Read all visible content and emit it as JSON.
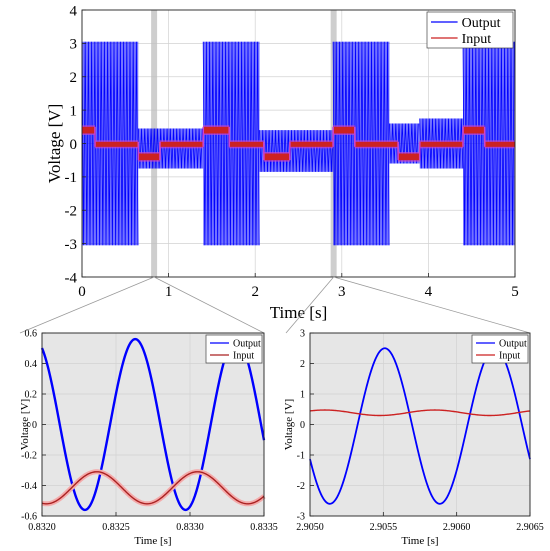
{
  "chart_data": [
    {
      "id": "main",
      "type": "line",
      "xlabel": "Time  [s]",
      "ylabel": "Voltage [V]",
      "xlim": [
        0,
        5
      ],
      "ylim": [
        -4,
        4
      ],
      "xticks": [
        0,
        1,
        2,
        3,
        4,
        5
      ],
      "yticks": [
        -4,
        -3,
        -2,
        -1,
        0,
        1,
        2,
        3,
        4
      ],
      "grid": true,
      "legend_position": "top-right",
      "series": [
        {
          "name": "Output",
          "color": "#0000ff",
          "style": "dense-oscillation-envelope",
          "segments": [
            {
              "x": [
                0.0,
                0.65
              ],
              "amp_top": 3.05,
              "amp_bot": -3.05
            },
            {
              "x": [
                0.65,
                1.4
              ],
              "amp_top": 0.45,
              "amp_bot": -0.75
            },
            {
              "x": [
                1.4,
                2.05
              ],
              "amp_top": 3.05,
              "amp_bot": -3.05
            },
            {
              "x": [
                2.05,
                2.9
              ],
              "amp_top": 0.4,
              "amp_bot": -0.85
            },
            {
              "x": [
                2.9,
                3.55
              ],
              "amp_top": 3.05,
              "amp_bot": -3.05
            },
            {
              "x": [
                3.55,
                3.9
              ],
              "amp_top": 0.6,
              "amp_bot": -0.6
            },
            {
              "x": [
                3.9,
                4.4
              ],
              "amp_top": 0.75,
              "amp_bot": -0.75
            },
            {
              "x": [
                4.4,
                5.0
              ],
              "amp_top": 3.05,
              "amp_bot": -3.05
            }
          ]
        },
        {
          "name": "Input",
          "color": "#cc2222",
          "style": "dense-oscillation-envelope",
          "segments": [
            {
              "x": [
                0.0,
                0.15
              ],
              "amp_top": 0.5,
              "amp_bot": 0.3
            },
            {
              "x": [
                0.15,
                0.65
              ],
              "amp_top": 0.05,
              "amp_bot": -0.1
            },
            {
              "x": [
                0.65,
                0.9
              ],
              "amp_top": -0.3,
              "amp_bot": -0.5
            },
            {
              "x": [
                0.9,
                1.4
              ],
              "amp_top": 0.05,
              "amp_bot": -0.1
            },
            {
              "x": [
                1.4,
                1.7
              ],
              "amp_top": 0.5,
              "amp_bot": 0.3
            },
            {
              "x": [
                1.7,
                2.1
              ],
              "amp_top": 0.05,
              "amp_bot": -0.1
            },
            {
              "x": [
                2.1,
                2.4
              ],
              "amp_top": -0.3,
              "amp_bot": -0.5
            },
            {
              "x": [
                2.4,
                2.9
              ],
              "amp_top": 0.05,
              "amp_bot": -0.1
            },
            {
              "x": [
                2.9,
                3.15
              ],
              "amp_top": 0.5,
              "amp_bot": 0.3
            },
            {
              "x": [
                3.15,
                3.65
              ],
              "amp_top": 0.05,
              "amp_bot": -0.1
            },
            {
              "x": [
                3.65,
                3.9
              ],
              "amp_top": -0.3,
              "amp_bot": -0.5
            },
            {
              "x": [
                3.9,
                4.4
              ],
              "amp_top": 0.05,
              "amp_bot": -0.1
            },
            {
              "x": [
                4.4,
                4.65
              ],
              "amp_top": 0.5,
              "amp_bot": 0.3
            },
            {
              "x": [
                4.65,
                5.0
              ],
              "amp_top": 0.05,
              "amp_bot": -0.1
            }
          ]
        }
      ],
      "zoom_regions": [
        {
          "x": [
            0.832,
            0.8335
          ]
        },
        {
          "x": [
            2.905,
            2.9065
          ]
        }
      ]
    },
    {
      "id": "zoom_left",
      "type": "line",
      "xlabel": "Time [s]",
      "ylabel": "Voltage [V]",
      "xlim": [
        0.832,
        0.8335
      ],
      "ylim": [
        -0.6,
        0.6
      ],
      "xticks": [
        0.832,
        0.8325,
        0.833,
        0.8335
      ],
      "xtick_labels": [
        "0.8320",
        "0.8325",
        "0.8330",
        "0.8335"
      ],
      "yticks": [
        -0.6,
        -0.4,
        -0.2,
        0,
        0.2,
        0.4,
        0.6
      ],
      "ytick_labels": [
        "-0.6",
        "-0.4",
        "-0.2",
        "0",
        "0.2",
        "0.4",
        "0.6"
      ],
      "background": "#e6e6e6",
      "grid": true,
      "legend_position": "top-right",
      "series": [
        {
          "name": "Output",
          "color": "#0000ff",
          "kind": "sine",
          "amp": 0.56,
          "offset": 0.0,
          "period": 0.00068,
          "peak_at": 0.83263
        },
        {
          "name": "Input",
          "color": "#aa2222",
          "kind": "sine",
          "amp": 0.105,
          "offset": -0.415,
          "period": 0.00068,
          "peak_at": 0.83237
        }
      ]
    },
    {
      "id": "zoom_right",
      "type": "line",
      "xlabel": "Time [s]",
      "ylabel": "Voltage [V]",
      "xlim": [
        2.905,
        2.9065
      ],
      "ylim": [
        -3,
        3
      ],
      "xticks": [
        2.905,
        2.9055,
        2.906,
        2.9065
      ],
      "xtick_labels": [
        "2.9050",
        "2.9055",
        "2.9060",
        "2.9065"
      ],
      "yticks": [
        -3,
        -2,
        -1,
        0,
        1,
        2,
        3
      ],
      "ytick_labels": [
        "-3",
        "-2",
        "-1",
        "0",
        "1",
        "2",
        "3"
      ],
      "background": "#e6e6e6",
      "grid": true,
      "legend_position": "top-right",
      "series": [
        {
          "name": "Output",
          "color": "#0000ff",
          "kind": "sine",
          "amp": 2.55,
          "offset": -0.05,
          "period": 0.00075,
          "peak_at": 2.90551
        },
        {
          "name": "Input",
          "color": "#cc2222",
          "kind": "sine",
          "amp": 0.09,
          "offset": 0.385,
          "period": 0.00075,
          "peak_at": 2.90585
        }
      ]
    }
  ]
}
